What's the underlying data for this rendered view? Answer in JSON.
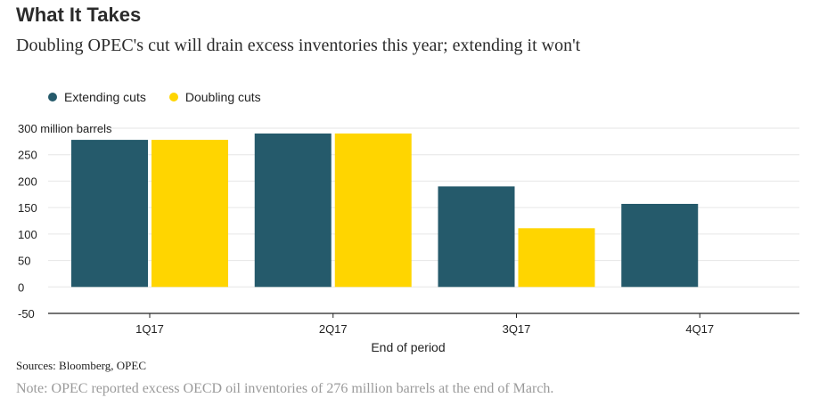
{
  "title": "What It Takes",
  "subtitle": "Doubling OPEC's cut will drain excess inventories this year; extending it won't",
  "sources": "Sources: Bloomberg, OPEC",
  "note": "Note: OPEC reported excess OECD oil inventories of 276 million barrels at the end of March.",
  "chart_data": {
    "type": "bar",
    "categories": [
      "1Q17",
      "2Q17",
      "3Q17",
      "4Q17"
    ],
    "series": [
      {
        "name": "Extending cuts",
        "color": "#255a6b",
        "values": [
          278,
          290,
          190,
          157
        ]
      },
      {
        "name": "Doubling cuts",
        "color": "#ffd500",
        "values": [
          278,
          290,
          111,
          0
        ]
      }
    ],
    "xlabel": "End of period",
    "ylabel": "",
    "y_unit_label": "300 million barrels",
    "yticks": [
      300,
      250,
      200,
      150,
      100,
      50,
      0,
      -50
    ],
    "ytick_labels": [
      "300 million barrels",
      "250",
      "200",
      "150",
      "100",
      "50",
      "0",
      "-50"
    ],
    "ylim": [
      -50,
      300
    ],
    "grid": true,
    "legend_position": "top-left"
  }
}
